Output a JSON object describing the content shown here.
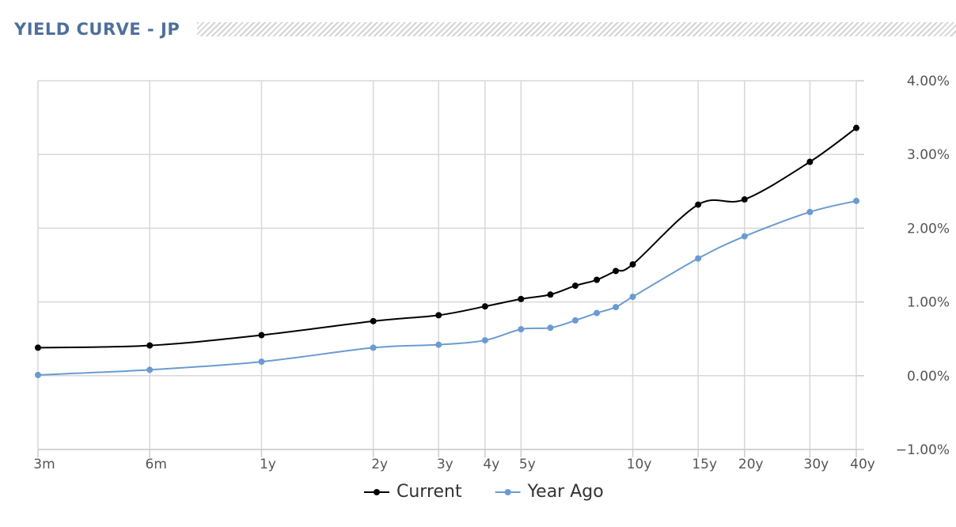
{
  "chart_data": {
    "type": "line",
    "title": "YIELD CURVE - JP",
    "log_x": true,
    "grid": true,
    "x": [
      0.25,
      0.5,
      1,
      2,
      3,
      4,
      5,
      6,
      7,
      8,
      9,
      10,
      15,
      20,
      30,
      40
    ],
    "series": [
      {
        "name": "Current",
        "color": "#000000",
        "values": [
          0.38,
          0.41,
          0.55,
          0.74,
          0.82,
          0.94,
          1.04,
          1.1,
          1.22,
          1.3,
          1.42,
          1.51,
          2.32,
          2.39,
          2.9,
          3.36
        ]
      },
      {
        "name": "Year Ago",
        "color": "#6a9bd1",
        "values": [
          0.01,
          0.08,
          0.19,
          0.38,
          0.42,
          0.48,
          0.63,
          0.65,
          0.75,
          0.85,
          0.93,
          1.07,
          1.59,
          1.89,
          2.22,
          2.37
        ]
      }
    ],
    "xlim": [
      0.25,
      40
    ],
    "xticks": [
      {
        "value": 0.25,
        "label": "3m"
      },
      {
        "value": 0.5,
        "label": "6m"
      },
      {
        "value": 1,
        "label": "1y"
      },
      {
        "value": 2,
        "label": "2y"
      },
      {
        "value": 3,
        "label": "3y"
      },
      {
        "value": 4,
        "label": "4y"
      },
      {
        "value": 5,
        "label": "5y"
      },
      {
        "value": 10,
        "label": "10y"
      },
      {
        "value": 15,
        "label": "15y"
      },
      {
        "value": 20,
        "label": "20y"
      },
      {
        "value": 30,
        "label": "30y"
      },
      {
        "value": 40,
        "label": "40y"
      }
    ],
    "ylim": [
      -1,
      4
    ],
    "yticks": [
      {
        "value": -1,
        "label": "−1.00%"
      },
      {
        "value": 0,
        "label": "0.00%"
      },
      {
        "value": 1,
        "label": "1.00%"
      },
      {
        "value": 2,
        "label": "2.00%"
      },
      {
        "value": 3,
        "label": "3.00%"
      },
      {
        "value": 4,
        "label": "4.00%"
      }
    ]
  }
}
